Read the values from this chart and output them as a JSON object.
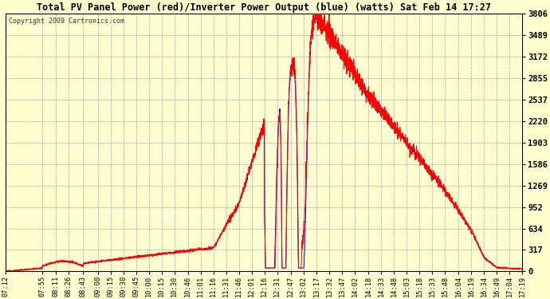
{
  "title": "Total PV Panel Power (red)/Inverter Power Output (blue) (watts) Sat Feb 14 17:27",
  "copyright": "Copyright 2009 Cartronics.com",
  "bg_color": "#FFFFD0",
  "plot_bg_color": "#FFFFD0",
  "grid_color": "#8888AA",
  "red_color": "#FF0000",
  "blue_color": "#0000FF",
  "ymin": 0.0,
  "ymax": 3806.2,
  "yticks": [
    0.0,
    317.2,
    634.4,
    951.5,
    1268.7,
    1585.9,
    1903.1,
    2220.3,
    2537.4,
    2854.6,
    3171.8,
    3489.0,
    3806.2
  ],
  "xtick_labels": [
    "07:12",
    "07:55",
    "08:11",
    "08:26",
    "08:43",
    "09:00",
    "09:15",
    "09:30",
    "09:45",
    "10:00",
    "10:15",
    "10:30",
    "10:46",
    "11:01",
    "11:16",
    "11:31",
    "11:46",
    "12:01",
    "12:16",
    "12:31",
    "12:47",
    "13:02",
    "13:17",
    "13:32",
    "13:47",
    "14:02",
    "14:18",
    "14:33",
    "14:48",
    "15:03",
    "15:18",
    "15:33",
    "15:48",
    "16:04",
    "16:19",
    "16:34",
    "16:49",
    "17:04",
    "17:19"
  ]
}
